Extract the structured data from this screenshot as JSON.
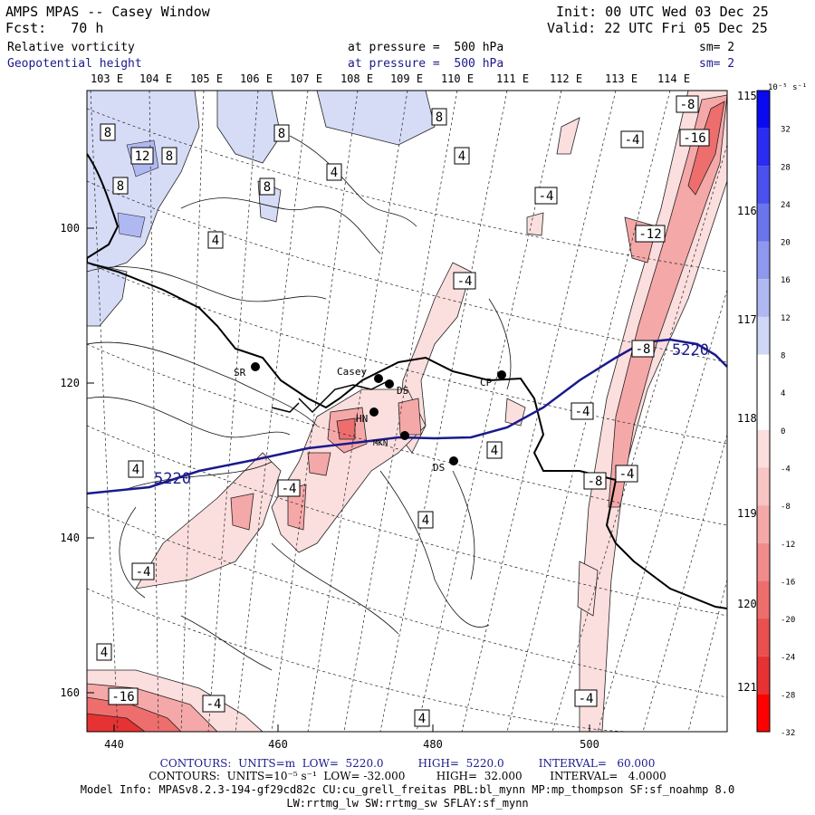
{
  "header": {
    "title": "AMPS MPAS -- Casey Window",
    "fcst": "Fcst:   70 h",
    "init": "Init: 00 UTC Wed 03 Dec 25",
    "valid": "Valid: 22 UTC Fri 05 Dec 25",
    "field1": {
      "name": "Relative vorticity",
      "level": "at pressure =  500 hPa",
      "sm": "sm= 2"
    },
    "field2": {
      "name": "Geopotential height",
      "level": "at pressure =  500 hPa",
      "sm": "sm= 2"
    }
  },
  "map": {
    "top_lon_labels": [
      "103 E",
      "104 E",
      "105 E",
      "106 E",
      "107 E",
      "108 E",
      "109 E",
      "110 E",
      "111 E",
      "112 E",
      "113 E",
      "114 E"
    ],
    "right_lon_labels": [
      "115 E",
      "116 E",
      "117 E",
      "118 E",
      "119 E",
      "120 E",
      "121 E"
    ],
    "x_ticks": [
      "440",
      "460",
      "480",
      "500"
    ],
    "y_ticks": [
      "100",
      "120",
      "140",
      "160"
    ],
    "stations": [
      {
        "label": "SR"
      },
      {
        "label": "Casey"
      },
      {
        "label": "DS"
      },
      {
        "label": "HN"
      },
      {
        "label": "MKN"
      },
      {
        "label": "CP"
      },
      {
        "label": "DS"
      }
    ],
    "contour_labels": [
      "8",
      "12",
      "8",
      "8",
      "8",
      "8",
      "8",
      "4",
      "4",
      "4",
      "4",
      "4",
      "4",
      "4",
      "4",
      "4",
      "-4",
      "-4",
      "-4",
      "-4",
      "-4",
      "-4",
      "-4",
      "-4",
      "-4",
      "-8",
      "-8",
      "-8",
      "-12",
      "-16",
      "-16"
    ],
    "height_labels": [
      "5220",
      "5220"
    ]
  },
  "colorbar": {
    "unit": "10⁻⁵ s⁻¹",
    "ticks": [
      "32",
      "28",
      "24",
      "20",
      "16",
      "12",
      "8",
      "4",
      "0",
      "-4",
      "-8",
      "-12",
      "-16",
      "-20",
      "-24",
      "-28",
      "-32"
    ],
    "colors": [
      "#0a0af0",
      "#2a2cf0",
      "#4a50ee",
      "#6a74ec",
      "#8e98ee",
      "#b0b8f2",
      "#d0d6f6",
      "#ffffff",
      "#ffffff",
      "#fbdede",
      "#f8c4c4",
      "#f5a8a8",
      "#f28c8c",
      "#ee6e6e",
      "#ea5050",
      "#e63232",
      "#ff0000"
    ]
  },
  "footer": {
    "line1": "CONTOURS:  UNITS=m  LOW=  5220.0          HIGH=  5220.0          INTERVAL=   60.000",
    "line2": "CONTOURS:  UNITS=10⁻⁵ s⁻¹  LOW= -32.000         HIGH=  32.000        INTERVAL=   4.0000",
    "line3": "Model Info: MPASv8.2.3-194-gf29cd82c CU:cu_grell_freitas PBL:bl_mynn MP:mp_thompson SF:sf_noahmp 8.0",
    "line4": "LW:rrtmg_lw SW:rrtmg_sw SFLAY:sf_mynn"
  }
}
